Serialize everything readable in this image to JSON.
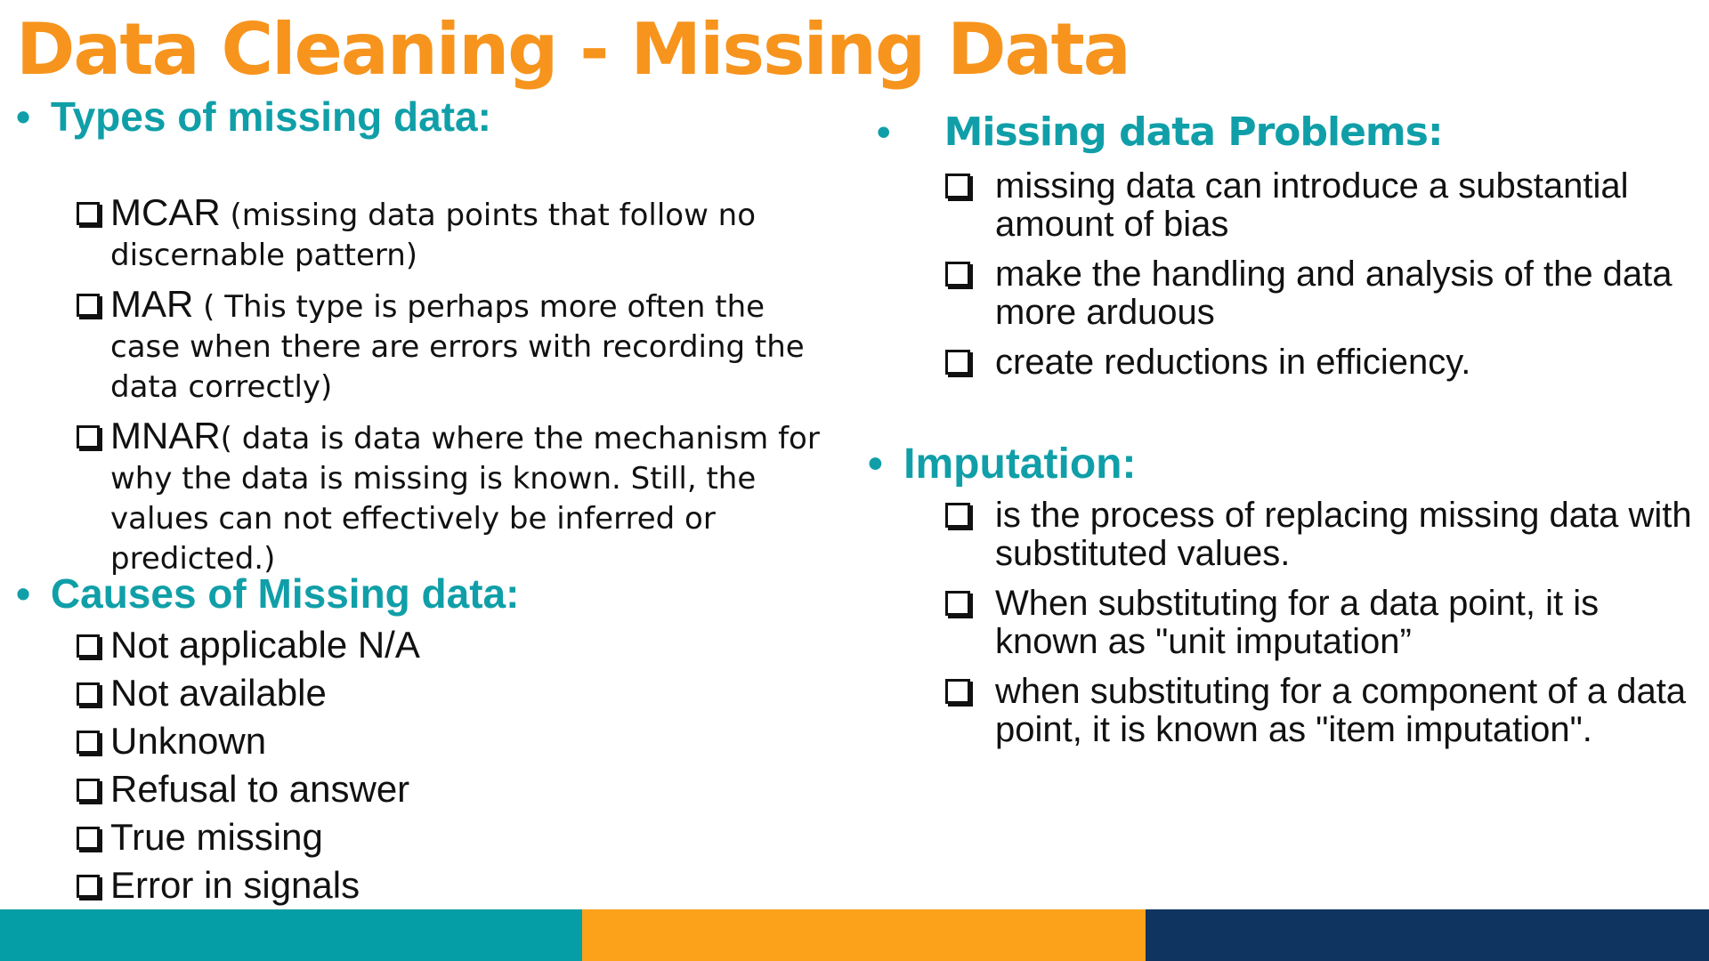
{
  "title": "Data Cleaning - Missing Data",
  "left": {
    "types_heading": "Types of missing data:",
    "types": [
      {
        "term": "MCAR",
        "desc": " (missing data points that follow no discernable pattern)"
      },
      {
        "term": "MAR",
        "desc": " ( This type is perhaps more often the case when there are errors with recording the data correctly)"
      },
      {
        "term": "MNAR",
        "desc": "( data is data where the mechanism for why the data is missing is known. Still, the values can not effectively be inferred or predicted.)"
      }
    ],
    "causes_heading": "Causes of Missing data:",
    "causes": [
      "Not applicable N/A",
      "Not available",
      "Unknown",
      "Refusal to answer",
      "True missing",
      "Error in signals"
    ]
  },
  "right": {
    "problems_heading": "Missing data Problems:",
    "problems": [
      "missing data can introduce a substantial amount of bias",
      "make the handling and analysis of the data more arduous",
      "create reductions in efficiency."
    ],
    "imputation_heading": "Imputation:",
    "imputation": [
      " is the process of replacing missing data with substituted values.",
      "When substituting for a data point, it is known as \"unit imputation”",
      "when substituting for a component of a data point, it is known as \"item imputation\"."
    ]
  },
  "bullet": "•",
  "colors": {
    "accent_orange": "#f7941d",
    "heading_teal": "#109fa8",
    "footer": [
      "#059ea6",
      "#fba21a",
      "#0f3460"
    ]
  }
}
